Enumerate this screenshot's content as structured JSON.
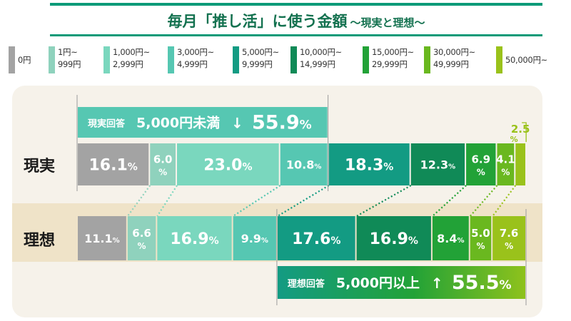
{
  "title": {
    "main": "毎月「推し活」に使う金額",
    "sub": "〜現実と理想〜"
  },
  "colors": {
    "title": "#13714f",
    "categories": [
      "#a3a3a3",
      "#8fd2bd",
      "#7ad7be",
      "#56c7b2",
      "#139b83",
      "#108a57",
      "#22a237",
      "#6ab81f",
      "#9ac21b"
    ]
  },
  "chart_data": {
    "type": "bar",
    "orientation": "horizontal-stacked-100",
    "categories": [
      "0円",
      "1円〜999円",
      "1,000円〜2,999円",
      "3,000円〜4,999円",
      "5,000円〜9,999円",
      "10,000円〜14,999円",
      "15,000円〜29,999円",
      "30,000円〜49,999円",
      "50,000円〜"
    ],
    "category_labels": [
      "0円",
      "1円~\n999円",
      "1,000円~\n2,999円",
      "3,000円~\n4,999円",
      "5,000円~\n9,999円",
      "10,000円~\n14,999円",
      "15,000円~\n29,999円",
      "30,000円~\n49,999円",
      "50,000円~"
    ],
    "series": [
      {
        "name": "現実",
        "values": [
          16.1,
          6.0,
          23.0,
          10.8,
          18.3,
          12.3,
          6.9,
          4.1,
          2.5
        ]
      },
      {
        "name": "理想",
        "values": [
          11.1,
          6.6,
          16.9,
          9.9,
          17.6,
          16.9,
          8.4,
          5.0,
          7.6
        ]
      }
    ],
    "unit": "%",
    "legend": "top",
    "callouts": [
      {
        "series": "現実",
        "label": "現実回答",
        "text": "5,000円未満",
        "arrow": "↓",
        "value": 55.9,
        "from_category": 0,
        "to_category": 3
      },
      {
        "series": "理想",
        "label": "理想回答",
        "text": "5,000円以上",
        "arrow": "↑",
        "value": 55.5,
        "from_category": 4,
        "to_category": 8
      }
    ]
  }
}
